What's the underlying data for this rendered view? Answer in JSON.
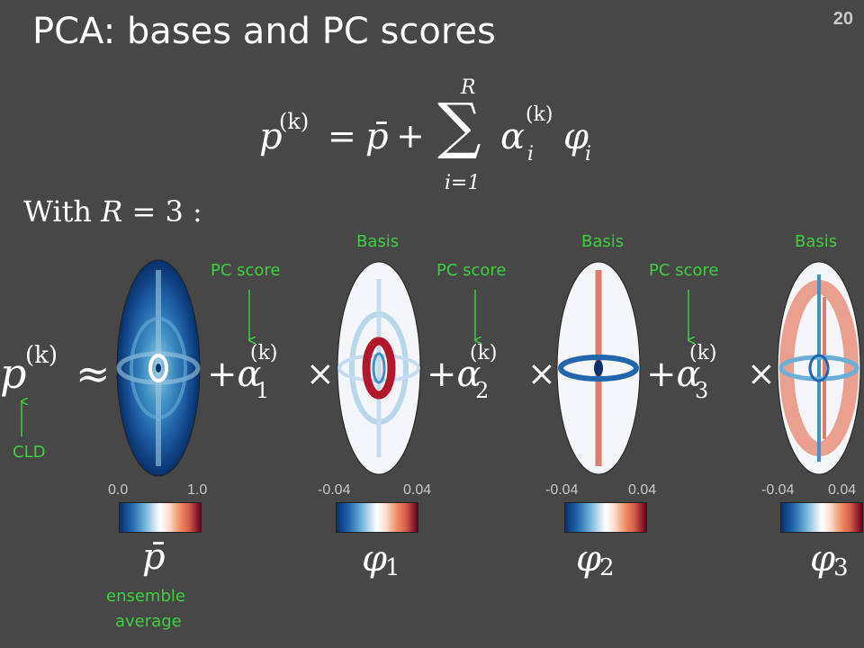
{
  "slide": {
    "title": "PCA: bases and PC scores",
    "page_number": "20"
  },
  "equation": {
    "lhs": "p",
    "lhs_sup": "(k)",
    "equals": "=",
    "pbar": "p̄",
    "plus": "+",
    "sum": "∑",
    "sum_upper": "R",
    "sum_lower": "i=1",
    "alpha": "α",
    "alpha_sub": "i",
    "alpha_sup": "(k)",
    "phi": "φ",
    "phi_sub": "i"
  },
  "with_line": {
    "prefix": "With",
    "R": "R",
    "rest": "= 3 :"
  },
  "expansion": {
    "lhs": "p",
    "lhs_sup": "(k)",
    "approx": "≈",
    "terms": [
      {
        "prefix": "+α",
        "sub": "1",
        "sup": "(k)",
        "times": "×"
      },
      {
        "prefix": "+α",
        "sub": "2",
        "sup": "(k)",
        "times": "×"
      },
      {
        "prefix": "+α",
        "sub": "3",
        "sup": "(k)",
        "times": "×"
      }
    ]
  },
  "labels": {
    "basis": [
      "Basis",
      "Basis",
      "Basis"
    ],
    "pc_score": [
      "PC score",
      "PC score",
      "PC score"
    ],
    "cld": "CLD",
    "ensemble_line1": "ensemble",
    "ensemble_line2": "average"
  },
  "colorbars": [
    {
      "min": "0.0",
      "max": "1.0",
      "symbol": "p̄",
      "sub": ""
    },
    {
      "min": "-0.04",
      "max": "0.04",
      "symbol": "φ",
      "sub": "1"
    },
    {
      "min": "-0.04",
      "max": "0.04",
      "symbol": "φ",
      "sub": "2"
    },
    {
      "min": "-0.04",
      "max": "0.04",
      "symbol": "φ",
      "sub": "3"
    }
  ],
  "colors": {
    "background": "#474747",
    "annotation_green": "#3ecf3e",
    "deep_blue": "#08306b",
    "deep_red": "#67001f"
  }
}
